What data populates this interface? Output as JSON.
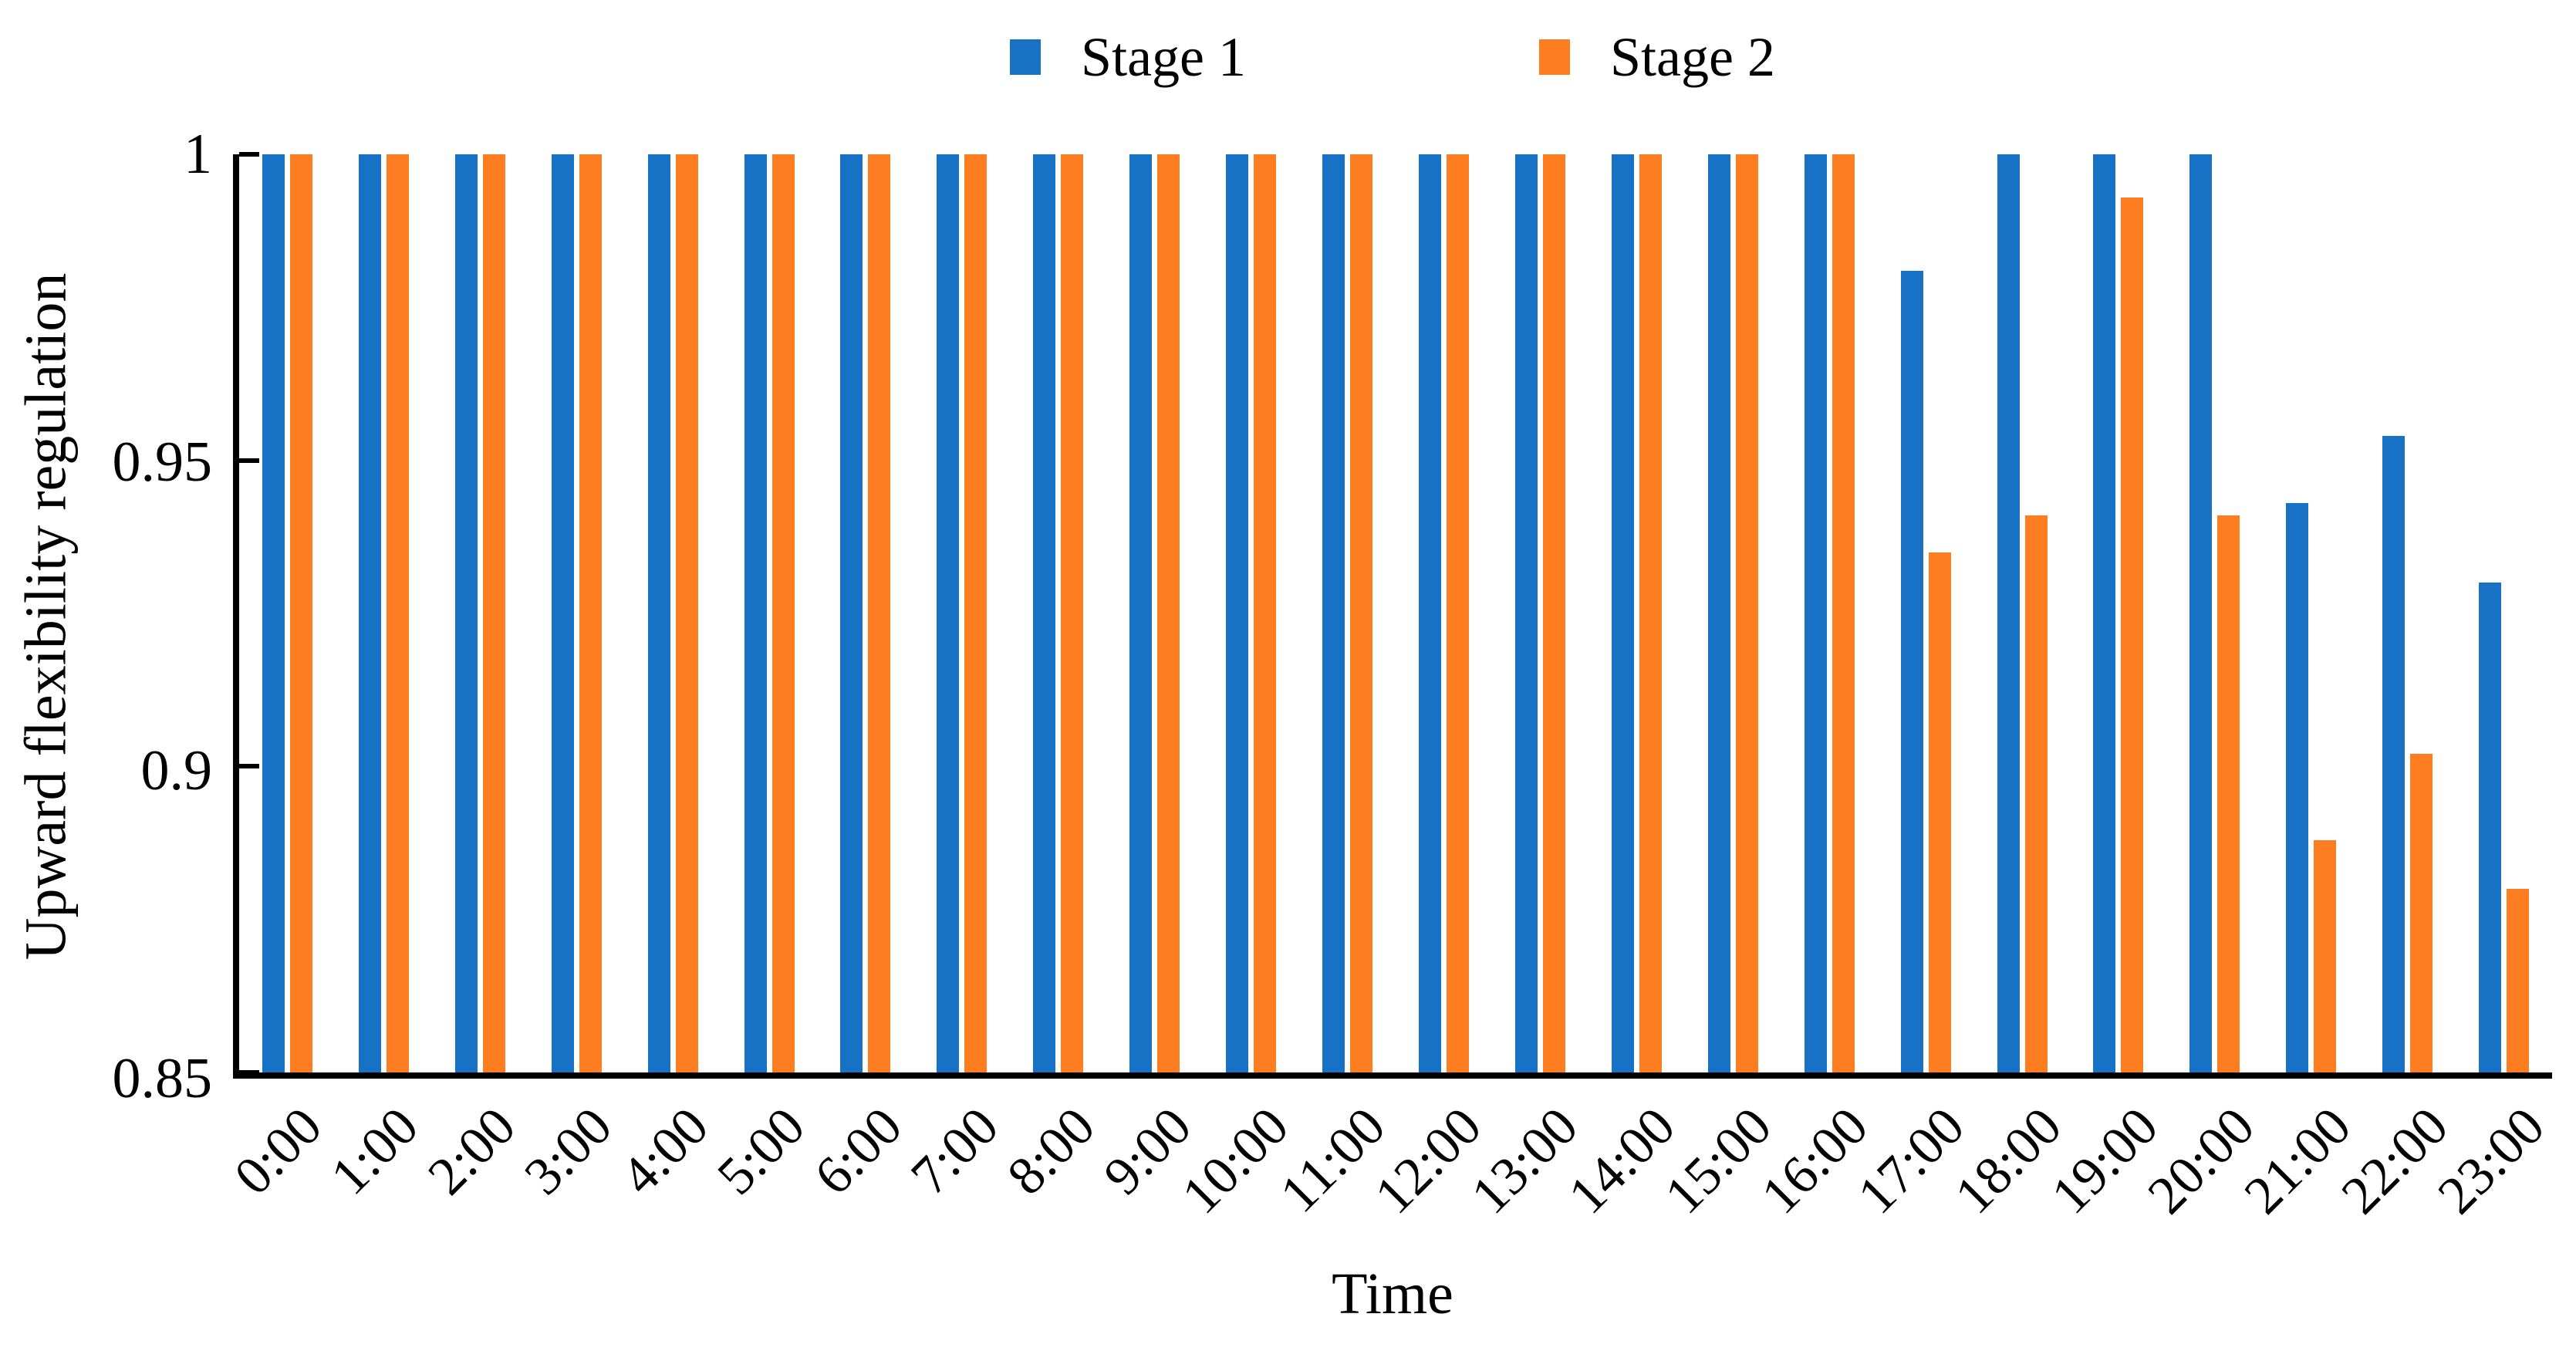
{
  "figure": {
    "y_axis_label": "Upward flexibility regulation",
    "x_axis_label": "Time"
  },
  "legend": {
    "position": "top-center",
    "items": [
      {
        "label": "Stage 1",
        "color": "#1772C5"
      },
      {
        "label": "Stage 2",
        "color": "#FF7D21"
      }
    ]
  },
  "chart_data": {
    "type": "bar",
    "title": "",
    "xlabel": "Time",
    "ylabel": "Upward flexibility regulation",
    "categories": [
      "0:00",
      "1:00",
      "2:00",
      "3:00",
      "4:00",
      "5:00",
      "6:00",
      "7:00",
      "8:00",
      "9:00",
      "10:00",
      "11:00",
      "12:00",
      "13:00",
      "14:00",
      "15:00",
      "16:00",
      "17:00",
      "18:00",
      "19:00",
      "20:00",
      "21:00",
      "22:00",
      "23:00"
    ],
    "series": [
      {
        "name": "Stage 1",
        "color": "#1772C5",
        "values": [
          1,
          1,
          1,
          1,
          1,
          1,
          1,
          1,
          1,
          1,
          1,
          1,
          1,
          1,
          1,
          1,
          1,
          0.981,
          1,
          1,
          1,
          0.943,
          0.954,
          0.93
        ]
      },
      {
        "name": "Stage 2",
        "color": "#FF7D21",
        "values": [
          1,
          1,
          1,
          1,
          1,
          1,
          1,
          1,
          1,
          1,
          1,
          1,
          1,
          1,
          1,
          1,
          1,
          0.935,
          0.941,
          0.993,
          0.941,
          0.888,
          0.902,
          0.88
        ]
      }
    ],
    "ylim": [
      0.85,
      1.0
    ],
    "yticks": [
      1,
      0.95,
      0.9,
      0.85
    ],
    "ytick_labels": [
      "1",
      "0.95",
      "0.9",
      "0.85"
    ],
    "grid": false,
    "legend_position": "top-center"
  }
}
